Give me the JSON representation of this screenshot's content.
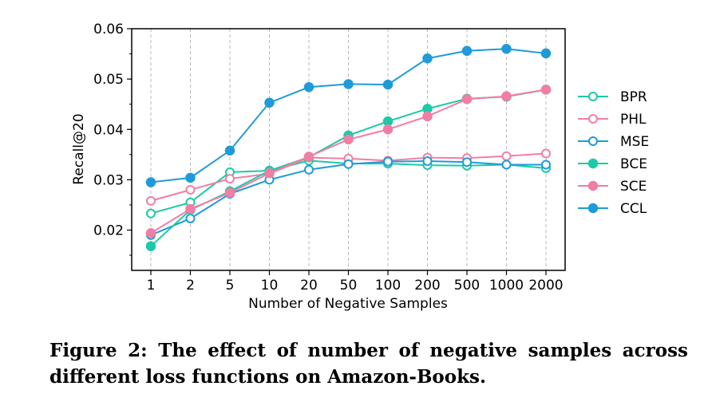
{
  "caption": "Figure 2: The effect of number of negative samples across different loss functions on Amazon-Books.",
  "chart_data": {
    "type": "line",
    "title": "",
    "xlabel": "Number of Negative Samples",
    "ylabel": "Recall@20",
    "categories": [
      "1",
      "2",
      "5",
      "10",
      "20",
      "50",
      "100",
      "200",
      "500",
      "1000",
      "2000"
    ],
    "ylim": [
      0.012,
      0.06
    ],
    "yticks": [
      "0.02",
      "0.03",
      "0.04",
      "0.05",
      "0.06"
    ],
    "ytick_values": [
      0.02,
      0.03,
      0.04,
      0.05,
      0.06
    ],
    "grid": "vertical dashed",
    "legend_position": "right",
    "series": [
      {
        "name": "BPR",
        "color": "#1dc9a8",
        "marker": "hollow-circle",
        "values": [
          0.0233,
          0.0255,
          0.0315,
          0.0318,
          0.0338,
          0.0332,
          0.0332,
          0.0329,
          0.0328,
          0.033,
          0.0323
        ]
      },
      {
        "name": "PHL",
        "color": "#f07fa3",
        "marker": "hollow-circle",
        "values": [
          0.0258,
          0.028,
          0.0302,
          0.0312,
          0.0344,
          0.0342,
          0.0338,
          0.0344,
          0.0343,
          0.0347,
          0.0352
        ]
      },
      {
        "name": "MSE",
        "color": "#1f9bd8",
        "marker": "hollow-circle",
        "values": [
          0.019,
          0.0223,
          0.0272,
          0.03,
          0.032,
          0.0331,
          0.0336,
          0.0337,
          0.0335,
          0.033,
          0.033
        ]
      },
      {
        "name": "BCE",
        "color": "#1dc9a8",
        "marker": "filled-circle",
        "values": [
          0.0168,
          0.024,
          0.0277,
          0.0318,
          0.0345,
          0.0388,
          0.0416,
          0.0441,
          0.0461,
          0.0465,
          0.0479
        ]
      },
      {
        "name": "SCE",
        "color": "#f07fa3",
        "marker": "filled-circle",
        "values": [
          0.0194,
          0.0242,
          0.0274,
          0.0313,
          0.0346,
          0.038,
          0.04,
          0.0426,
          0.046,
          0.0466,
          0.0479
        ]
      },
      {
        "name": "CCL",
        "color": "#1f9bd8",
        "marker": "filled-circle",
        "values": [
          0.0295,
          0.0304,
          0.0358,
          0.0453,
          0.0484,
          0.049,
          0.0489,
          0.0541,
          0.0556,
          0.056,
          0.0551
        ]
      }
    ]
  }
}
